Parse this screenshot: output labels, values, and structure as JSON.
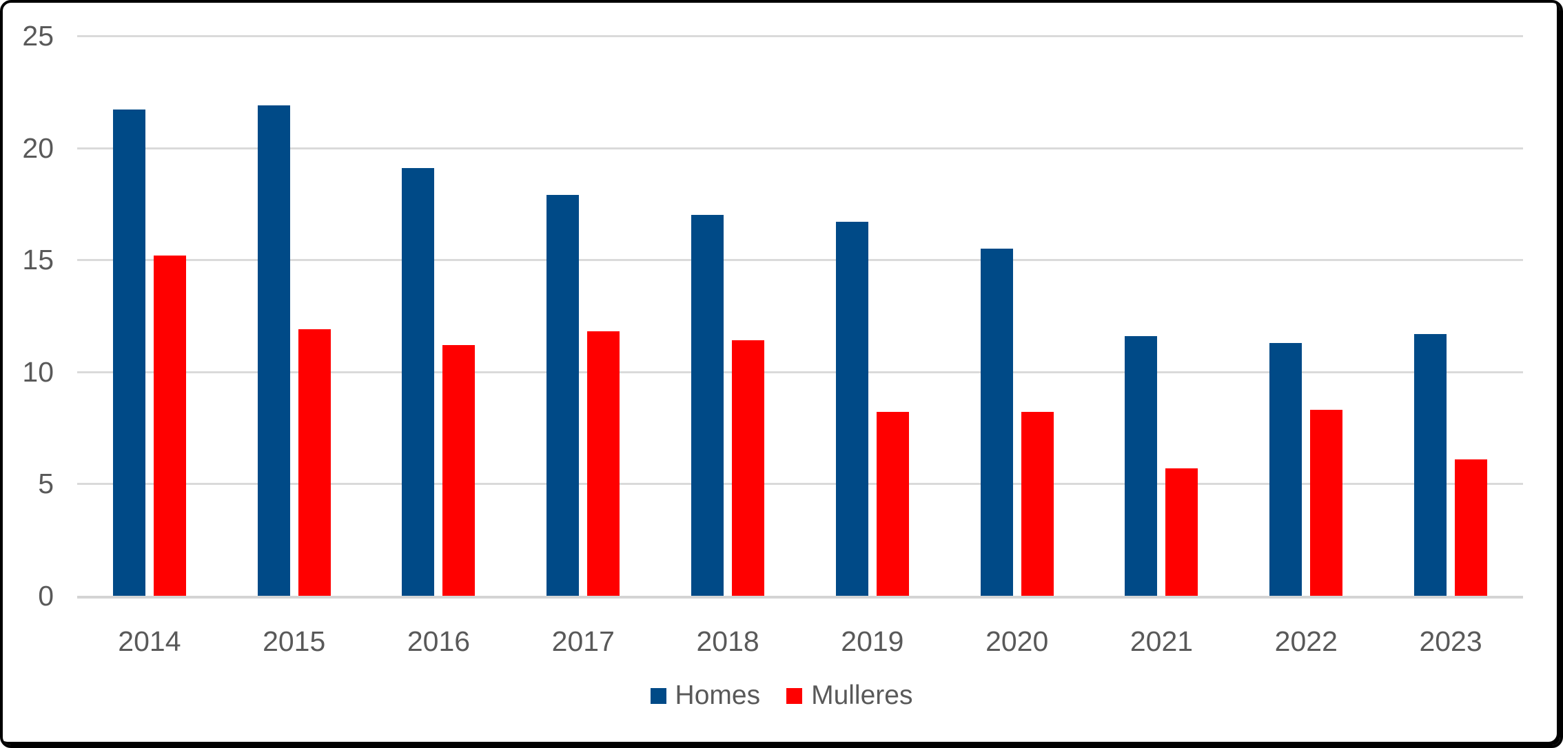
{
  "chart_data": {
    "type": "bar",
    "title": "",
    "xlabel": "",
    "ylabel": "",
    "categories": [
      "2014",
      "2015",
      "2016",
      "2017",
      "2018",
      "2019",
      "2020",
      "2021",
      "2022",
      "2023"
    ],
    "series": [
      {
        "name": "Homes",
        "color": "#004A87",
        "values": [
          21.7,
          21.9,
          19.1,
          17.9,
          17.0,
          16.7,
          15.5,
          11.6,
          11.3,
          11.7
        ]
      },
      {
        "name": "Mulleres",
        "color": "#FF0000",
        "values": [
          15.2,
          11.9,
          11.2,
          11.8,
          11.4,
          8.2,
          8.2,
          5.7,
          8.3,
          6.1
        ]
      }
    ],
    "ylim": [
      0,
      25
    ],
    "yticks": [
      25,
      20,
      15,
      10,
      5,
      0
    ],
    "grid": true,
    "legend_position": "bottom-center"
  },
  "legend": {
    "items": [
      {
        "label": "Homes"
      },
      {
        "label": "Mulleres"
      }
    ]
  },
  "colors": {
    "homes": "#004A87",
    "mulleres": "#FF0000",
    "axis_text": "#595959",
    "gridline": "#DADADA",
    "axis_line": "#D4D4D4",
    "frame_border": "#000000",
    "background": "#FFFFFF"
  }
}
